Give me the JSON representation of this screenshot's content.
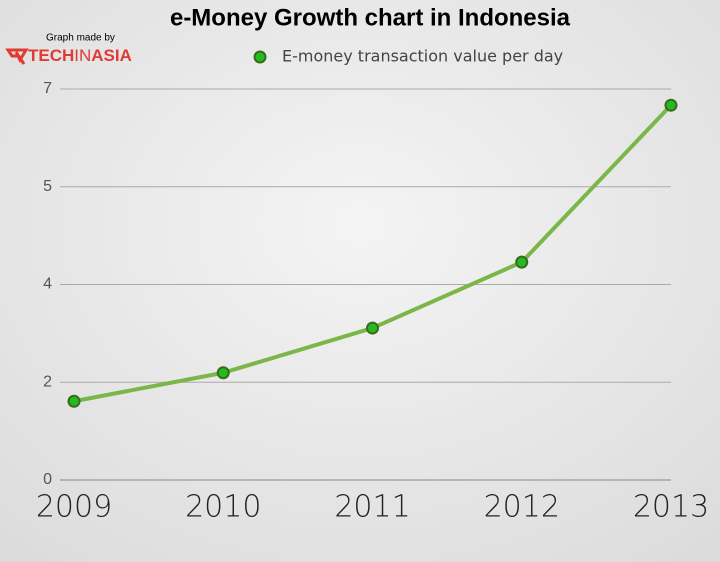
{
  "logo": {
    "caption": "Graph made by",
    "brand": [
      "TECH",
      "IN",
      "ASIA"
    ]
  },
  "chart_data": {
    "type": "line",
    "title": "e-Money Growth chart in Indonesia",
    "categories": [
      "2009",
      "2010",
      "2011",
      "2012",
      "2013"
    ],
    "series": [
      {
        "name": "E-money transaction value per day",
        "color": "#7ab648",
        "marker_color": "#22bb22",
        "values": [
          1.41,
          1.92,
          2.72,
          3.9,
          6.71
        ]
      }
    ],
    "ylim": [
      0,
      7
    ],
    "yticks": [
      0,
      {
        "value": 1.75,
        "label": "2"
      },
      {
        "value": 3.5,
        "label": "4"
      },
      {
        "value": 5.25,
        "label": "5"
      },
      7
    ],
    "grid": true,
    "legend": "top"
  }
}
